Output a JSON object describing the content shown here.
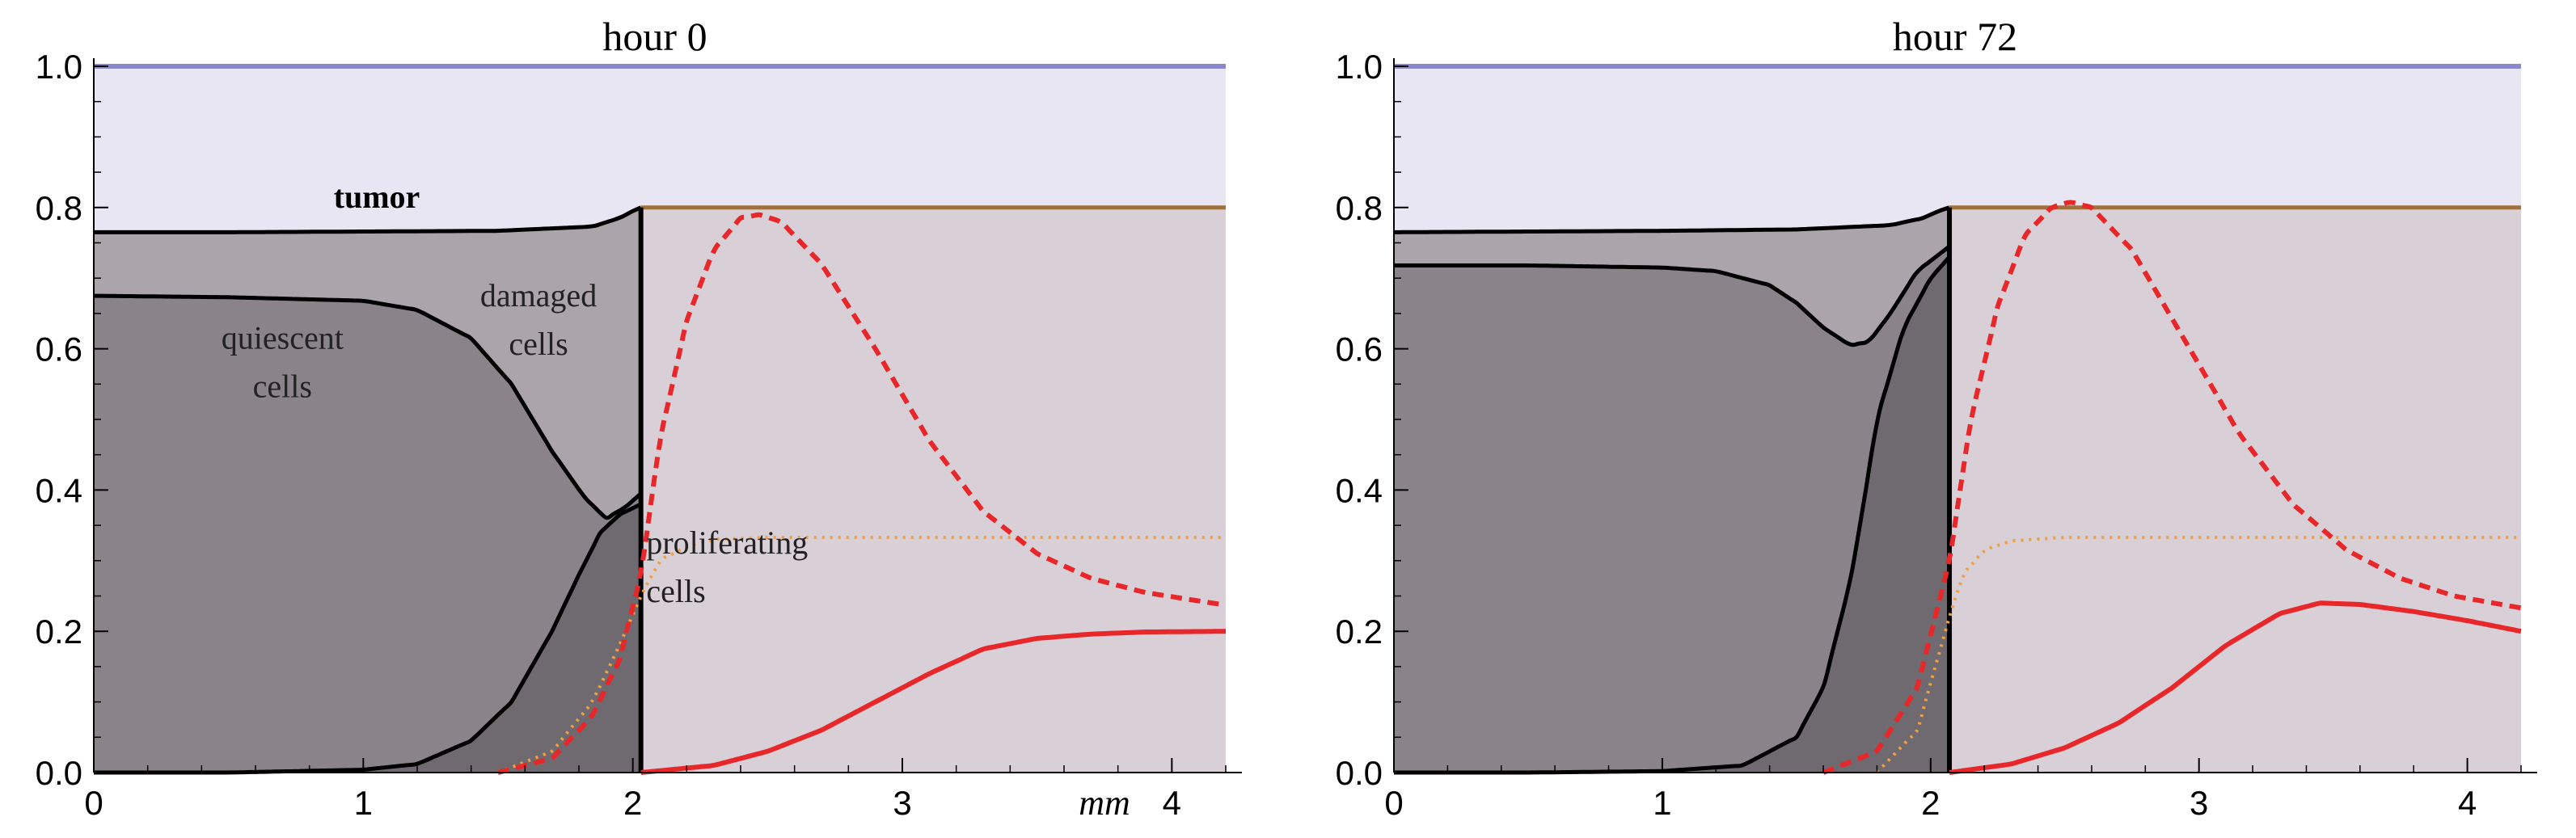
{
  "chart_data": [
    {
      "type": "area",
      "title": "hour 0",
      "unit_label": "mm",
      "xlim": [
        0,
        4.2
      ],
      "ylim": [
        0,
        1.0
      ],
      "x_ticks": [
        "0",
        "1",
        "2",
        "3",
        "4"
      ],
      "y_ticks": [
        "0.0",
        "0.2",
        "0.4",
        "0.6",
        "0.8",
        "1.0"
      ],
      "grid": false,
      "annotations": [
        {
          "text": "tumor",
          "bold": true
        },
        {
          "text": "damaged",
          "line2": "cells"
        },
        {
          "text": "quiescent",
          "line2": "cells"
        },
        {
          "text": "proliferating",
          "line2": "cells"
        }
      ],
      "colors": {
        "domain_fill": "#e8e6f2",
        "upper_line": "#8a87cc",
        "damaged_fill": "#aba5ab",
        "quiescent_fill": "#8a848a",
        "proliferating_fill": "#6f6a6f",
        "healthy_fill": "#d9cfd7",
        "brown_line": "#a0703e",
        "red": "#e8272a",
        "orange": "#f0a040"
      },
      "interface_x": 2.03,
      "series": [
        {
          "role": "tumor_total",
          "x": [
            0,
            0.5,
            1.0,
            1.5,
            1.85,
            1.95,
            2.0,
            2.03
          ],
          "y": [
            0.765,
            0.765,
            0.766,
            0.767,
            0.773,
            0.785,
            0.795,
            0.8
          ]
        },
        {
          "role": "quiescent_upper",
          "x": [
            0,
            0.5,
            1.0,
            1.2,
            1.4,
            1.55,
            1.7,
            1.82,
            1.9,
            1.97,
            2.03
          ],
          "y": [
            0.675,
            0.673,
            0.668,
            0.655,
            0.615,
            0.55,
            0.455,
            0.39,
            0.36,
            0.375,
            0.395
          ]
        },
        {
          "role": "proliferating_upper",
          "x": [
            0,
            0.5,
            1.0,
            1.2,
            1.4,
            1.55,
            1.7,
            1.8,
            1.88,
            1.95,
            2.03
          ],
          "y": [
            0.0,
            0.0,
            0.004,
            0.012,
            0.045,
            0.1,
            0.2,
            0.28,
            0.34,
            0.365,
            0.38
          ]
        },
        {
          "role": "healthy_top",
          "x": [
            2.03,
            4.2
          ],
          "y": [
            0.8,
            0.8
          ]
        },
        {
          "role": "red_dashed",
          "x": [
            1.5,
            1.7,
            1.85,
            1.95,
            2.03,
            2.1,
            2.2,
            2.3,
            2.4,
            2.47,
            2.55,
            2.7,
            2.9,
            3.1,
            3.3,
            3.5,
            3.7,
            3.9,
            4.2
          ],
          "y": [
            0.0,
            0.02,
            0.08,
            0.16,
            0.28,
            0.47,
            0.64,
            0.74,
            0.785,
            0.79,
            0.78,
            0.72,
            0.6,
            0.47,
            0.37,
            0.31,
            0.275,
            0.255,
            0.237
          ]
        },
        {
          "role": "orange_dotted",
          "x": [
            1.5,
            1.7,
            1.85,
            1.95,
            2.03,
            2.1,
            2.2,
            2.3,
            2.5,
            4.2
          ],
          "y": [
            0.0,
            0.03,
            0.1,
            0.18,
            0.25,
            0.3,
            0.32,
            0.33,
            0.333,
            0.333
          ]
        },
        {
          "role": "red_solid",
          "x": [
            2.03,
            2.3,
            2.5,
            2.7,
            2.9,
            3.1,
            3.3,
            3.5,
            3.7,
            3.9,
            4.2
          ],
          "y": [
            0.0,
            0.01,
            0.03,
            0.06,
            0.1,
            0.14,
            0.175,
            0.19,
            0.196,
            0.199,
            0.2
          ]
        }
      ]
    },
    {
      "type": "area",
      "title": "hour 72",
      "xlim": [
        0,
        4.2
      ],
      "ylim": [
        0,
        1.0
      ],
      "x_ticks": [
        "0",
        "1",
        "2",
        "3",
        "4"
      ],
      "y_ticks": [
        "0.0",
        "0.2",
        "0.4",
        "0.6",
        "0.8",
        "1.0"
      ],
      "grid": false,
      "annotations": [],
      "colors": {
        "domain_fill": "#e8e6f2",
        "upper_line": "#8a87cc",
        "damaged_fill": "#aba5ab",
        "quiescent_fill": "#8a848a",
        "proliferating_fill": "#6f6a6f",
        "healthy_fill": "#d9cfd7",
        "brown_line": "#a0703e",
        "red": "#e8272a",
        "orange": "#f0a040"
      },
      "interface_x": 2.07,
      "series": [
        {
          "role": "tumor_total",
          "x": [
            0,
            0.5,
            1.0,
            1.5,
            1.85,
            1.97,
            2.03,
            2.07
          ],
          "y": [
            0.765,
            0.766,
            0.767,
            0.769,
            0.775,
            0.785,
            0.795,
            0.8
          ]
        },
        {
          "role": "quiescent_upper",
          "x": [
            0,
            0.5,
            1.0,
            1.2,
            1.4,
            1.5,
            1.6,
            1.7,
            1.77,
            1.85,
            1.95,
            2.07
          ],
          "y": [
            0.718,
            0.718,
            0.715,
            0.71,
            0.69,
            0.665,
            0.63,
            0.605,
            0.61,
            0.65,
            0.71,
            0.745
          ]
        },
        {
          "role": "proliferating_upper",
          "x": [
            0,
            0.5,
            1.0,
            1.3,
            1.5,
            1.6,
            1.7,
            1.75,
            1.8,
            1.9,
            2.0,
            2.07
          ],
          "y": [
            0.0,
            0.0,
            0.002,
            0.01,
            0.05,
            0.12,
            0.27,
            0.38,
            0.5,
            0.63,
            0.7,
            0.73
          ]
        },
        {
          "role": "healthy_top",
          "x": [
            2.07,
            4.2
          ],
          "y": [
            0.8,
            0.8
          ]
        },
        {
          "role": "red_dashed",
          "x": [
            1.6,
            1.8,
            1.95,
            2.07,
            2.15,
            2.25,
            2.35,
            2.45,
            2.52,
            2.6,
            2.75,
            2.95,
            3.15,
            3.35,
            3.55,
            3.75,
            3.95,
            4.2
          ],
          "y": [
            0.0,
            0.03,
            0.12,
            0.3,
            0.5,
            0.66,
            0.76,
            0.8,
            0.808,
            0.8,
            0.74,
            0.61,
            0.48,
            0.38,
            0.315,
            0.275,
            0.25,
            0.233
          ]
        },
        {
          "role": "orange_dotted",
          "x": [
            1.8,
            1.95,
            2.07,
            2.12,
            2.2,
            2.3,
            2.5,
            4.2
          ],
          "y": [
            0.0,
            0.06,
            0.22,
            0.28,
            0.315,
            0.328,
            0.333,
            0.333
          ]
        },
        {
          "role": "red_solid",
          "x": [
            2.07,
            2.3,
            2.5,
            2.7,
            2.9,
            3.1,
            3.3,
            3.45,
            3.6,
            3.8,
            4.0,
            4.2
          ],
          "y": [
            0.0,
            0.012,
            0.035,
            0.07,
            0.12,
            0.18,
            0.225,
            0.24,
            0.238,
            0.228,
            0.215,
            0.2
          ]
        }
      ]
    }
  ]
}
